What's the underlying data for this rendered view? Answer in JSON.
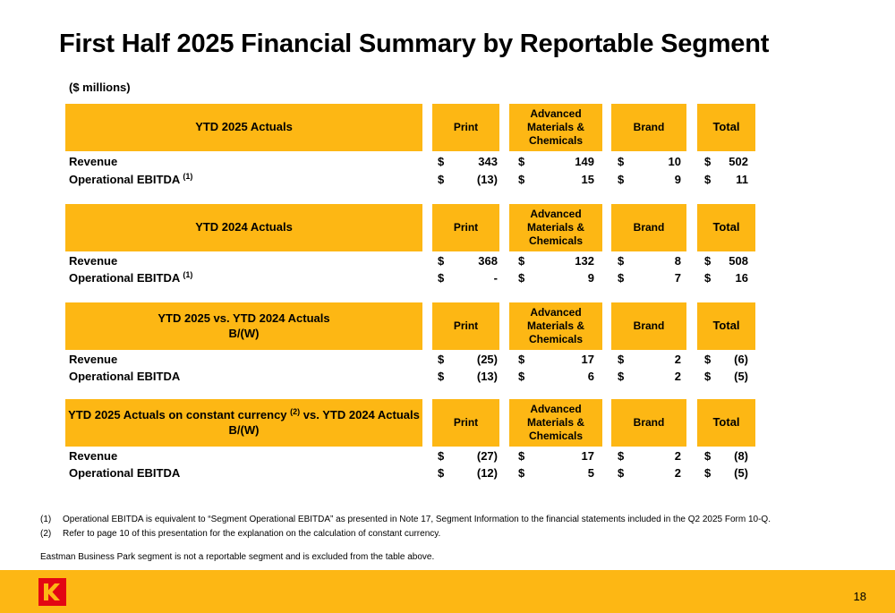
{
  "title": "First Half 2025 Financial Summary by Reportable Segment",
  "units": "($ millions)",
  "columns": {
    "print": "Print",
    "amc_1": "Advanced",
    "amc_2": "Materials &",
    "amc_3": "Chemicals",
    "brand": "Brand",
    "total": "Total"
  },
  "currency_symbol": "$",
  "sections": [
    {
      "header_1": "YTD 2025 Actuals",
      "rows": [
        {
          "label": "Revenue",
          "note": "",
          "print": "343",
          "amc": "149",
          "brand": "10",
          "total": "502"
        },
        {
          "label": "Operational EBITDA",
          "note": "(1)",
          "print": "(13)",
          "amc": "15",
          "brand": "9",
          "total": "11"
        }
      ]
    },
    {
      "header_1": "YTD 2024 Actuals",
      "rows": [
        {
          "label": "Revenue",
          "note": "",
          "print": "368",
          "amc": "132",
          "brand": "8",
          "total": "508"
        },
        {
          "label": "Operational EBITDA",
          "note": "(1)",
          "print": "-",
          "amc": "9",
          "brand": "7",
          "total": "16"
        }
      ]
    },
    {
      "header_1": "YTD 2025 vs. YTD 2024 Actuals",
      "header_2": "B/(W)",
      "rows": [
        {
          "label": "Revenue",
          "note": "",
          "print": "(25)",
          "amc": "17",
          "brand": "2",
          "total": "(6)"
        },
        {
          "label": "Operational EBITDA",
          "note": "",
          "print": "(13)",
          "amc": "6",
          "brand": "2",
          "total": "(5)"
        }
      ]
    },
    {
      "header_1a": "YTD 2025 Actuals on constant currency",
      "header_note": "(2)",
      "header_1b": "vs. YTD 2024 Actuals",
      "header_2": "B/(W)",
      "rows": [
        {
          "label": "Revenue",
          "note": "",
          "print": "(27)",
          "amc": "17",
          "brand": "2",
          "total": "(8)"
        },
        {
          "label": "Operational EBITDA",
          "note": "",
          "print": "(12)",
          "amc": "5",
          "brand": "2",
          "total": "(5)"
        }
      ]
    }
  ],
  "footnotes": [
    {
      "num": "(1)",
      "text": "Operational EBITDA is equivalent to “Segment Operational EBITDA” as presented in Note 17, Segment Information to the financial statements included in the Q2 2025 Form 10-Q."
    },
    {
      "num": "(2)",
      "text": "Refer to page 10 of this presentation for the explanation on the calculation of constant currency."
    }
  ],
  "footer_note": "Eastman Business Park segment is not a reportable segment and is excluded from the table above.",
  "page_number": "18",
  "colors": {
    "accent": "#FDB714",
    "logo_red": "#E30613"
  },
  "logo_icon": "kodak-k-logo"
}
